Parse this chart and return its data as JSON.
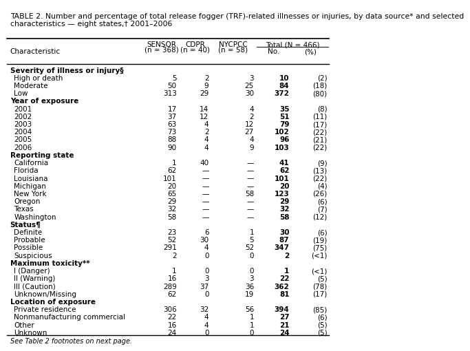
{
  "title": "TABLE 2. Number and percentage of total release fogger (TRF)-related illnesses or injuries, by data source* and selected\ncharacteristics — eight states,† 2001–2006",
  "col_header_span": "Total (N = 466)",
  "col_label": "Characteristic",
  "sections": [
    {
      "header": "Severity of illness or injury§",
      "rows": [
        [
          "  High or death",
          "5",
          "2",
          "3",
          "10",
          "(2)"
        ],
        [
          "  Moderate",
          "50",
          "9",
          "25",
          "84",
          "(18)"
        ],
        [
          "  Low",
          "313",
          "29",
          "30",
          "372",
          "(80)"
        ]
      ]
    },
    {
      "header": "Year of exposure",
      "rows": [
        [
          "  2001",
          "17",
          "14",
          "4",
          "35",
          "(8)"
        ],
        [
          "  2002",
          "37",
          "12",
          "2",
          "51",
          "(11)"
        ],
        [
          "  2003",
          "63",
          "4",
          "12",
          "79",
          "(17)"
        ],
        [
          "  2004",
          "73",
          "2",
          "27",
          "102",
          "(22)"
        ],
        [
          "  2005",
          "88",
          "4",
          "4",
          "96",
          "(21)"
        ],
        [
          "  2006",
          "90",
          "4",
          "9",
          "103",
          "(22)"
        ]
      ]
    },
    {
      "header": "Reporting state",
      "rows": [
        [
          "  California",
          "1",
          "40",
          "—",
          "41",
          "(9)"
        ],
        [
          "  Florida",
          "62",
          "—",
          "—",
          "62",
          "(13)"
        ],
        [
          "  Louisiana",
          "101",
          "—",
          "—",
          "101",
          "(22)"
        ],
        [
          "  Michigan",
          "20",
          "—",
          "—",
          "20",
          "(4)"
        ],
        [
          "  New York",
          "65",
          "—",
          "58",
          "123",
          "(26)"
        ],
        [
          "  Oregon",
          "29",
          "—",
          "—",
          "29",
          "(6)"
        ],
        [
          "  Texas",
          "32",
          "—",
          "—",
          "32",
          "(7)"
        ],
        [
          "  Washington",
          "58",
          "—",
          "—",
          "58",
          "(12)"
        ]
      ]
    },
    {
      "header": "Status¶",
      "rows": [
        [
          "  Definite",
          "23",
          "6",
          "1",
          "30",
          "(6)"
        ],
        [
          "  Probable",
          "52",
          "30",
          "5",
          "87",
          "(19)"
        ],
        [
          "  Possible",
          "291",
          "4",
          "52",
          "347",
          "(75)"
        ],
        [
          "  Suspicious",
          "2",
          "0",
          "0",
          "2",
          "(<1)"
        ]
      ]
    },
    {
      "header": "Maximum toxicity**",
      "rows": [
        [
          "  I (Danger)",
          "1",
          "0",
          "0",
          "1",
          "(<1)"
        ],
        [
          "  II (Warning)",
          "16",
          "3",
          "3",
          "22",
          "(5)"
        ],
        [
          "  III (Caution)",
          "289",
          "37",
          "36",
          "362",
          "(78)"
        ],
        [
          "  Unknown/Missing",
          "62",
          "0",
          "19",
          "81",
          "(17)"
        ]
      ]
    },
    {
      "header": "Location of exposure",
      "rows": [
        [
          "  Private residence",
          "306",
          "32",
          "56",
          "394",
          "(85)"
        ],
        [
          "  Nonmanufacturing commercial",
          "22",
          "4",
          "1",
          "27",
          "(6)"
        ],
        [
          "  Other",
          "16",
          "4",
          "1",
          "21",
          "(5)"
        ],
        [
          "  Unknown",
          "24",
          "0",
          "0",
          "24",
          "(5)"
        ]
      ]
    }
  ],
  "footnote": "See Table 2 footnotes on next page.",
  "bg_color": "#ffffff",
  "text_color": "#000000",
  "font_size": 7.5,
  "title_font_size": 7.8,
  "footnote_font_size": 7.0
}
